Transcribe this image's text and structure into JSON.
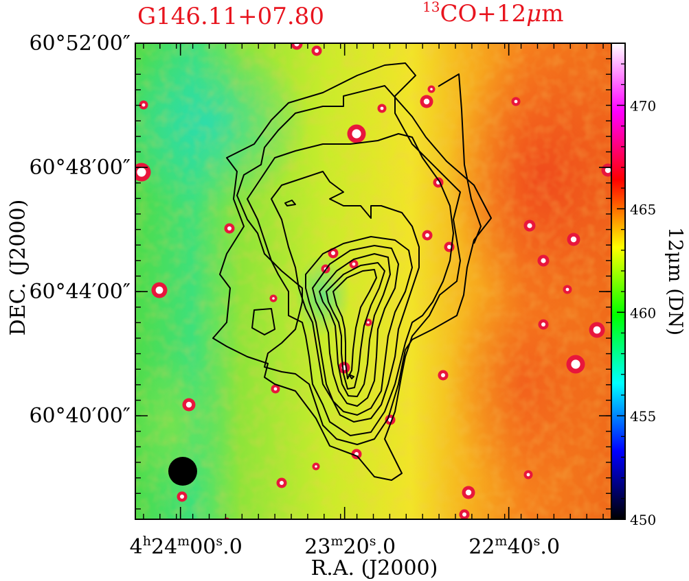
{
  "title": {
    "source_name": "G146.11+07.80",
    "tracer_sup": "13",
    "tracer_main": "CO+12",
    "tracer_mu": "μ",
    "tracer_unit": "m"
  },
  "colors": {
    "title": "#e8141e",
    "contour": "#000000",
    "frame": "#000000"
  },
  "chart_data": {
    "type": "heatmap",
    "description_type": "contour overlay on image",
    "xlabel": "R.A.  (J2000)",
    "ylabel": "DEC.  (J2000)",
    "x_unit": "RA (hms, J2000)",
    "y_unit": "Dec (dms, J2000)",
    "xlim": [
      "04h24m11s",
      "04h22m15s"
    ],
    "ylim": [
      "60°36'40\"",
      "60°52'00\""
    ],
    "x_ticks": [
      {
        "value": "04h24m00s",
        "label_h": "4",
        "label_hs": "h",
        "label_m": "24",
        "label_ms": "m",
        "label_s": "00",
        "label_ss": "s",
        "label_f": ".0"
      },
      {
        "value": "04h23m20s",
        "label_m": "23",
        "label_ms": "m",
        "label_s": "20",
        "label_ss": "s",
        "label_f": ".0"
      },
      {
        "value": "04h22m40s",
        "label_m": "22",
        "label_ms": "m",
        "label_s": "40",
        "label_ss": "s",
        "label_f": ".0"
      }
    ],
    "y_ticks": [
      {
        "value": "60:52:00",
        "label": "60°52′00″"
      },
      {
        "value": "60:48:00",
        "label": "60°48′00″"
      },
      {
        "value": "60:44:00",
        "label": "60°44′00″"
      },
      {
        "value": "60:40:00",
        "label": "60°40′00″"
      }
    ],
    "colorbar": {
      "label": "12μm (DN)",
      "range": [
        450,
        473
      ],
      "ticks": [
        450,
        455,
        460,
        465,
        470
      ],
      "colormap": [
        "#000000",
        "#0000ff",
        "#00ffff",
        "#00ff00",
        "#ffff00",
        "#ff0000",
        "#ff00ff",
        "#ffffff"
      ]
    },
    "background_image": {
      "band": "WISE 12 micron",
      "trend": "green/cyan (~459-461 DN) on east (left) side, yellow in center (~462 DN), orange/red (~464-467 DN) on west (right) side"
    },
    "contours": {
      "tracer": "13CO",
      "levels": 9,
      "peak_position": [
        "04h23m20s",
        "60°45'"
      ],
      "secondary_peak": [
        "04h23m19s",
        "60°41'40\""
      ]
    },
    "beam": {
      "position": "bottom-left",
      "shape": "circle"
    },
    "grid": false
  }
}
